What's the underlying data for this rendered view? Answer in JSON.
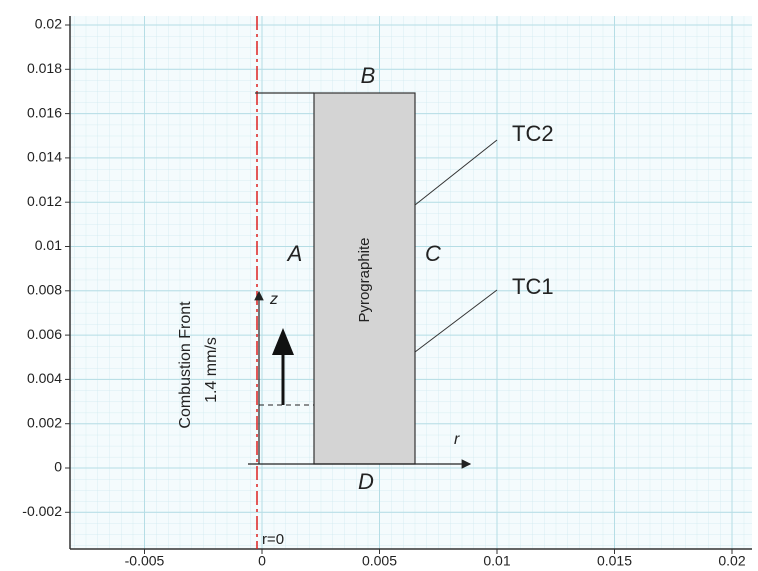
{
  "axes": {
    "xticks": [
      -0.005,
      0,
      0.005,
      0.01,
      0.015,
      0.02
    ],
    "yticks": [
      -0.002,
      0,
      0.002,
      0.004,
      0.006,
      0.008,
      0.01,
      0.012,
      0.014,
      0.016,
      0.018,
      0.02
    ]
  },
  "labels": {
    "top": "B",
    "left": "A",
    "right": "C",
    "bottom": "D",
    "material": "Pyrographite",
    "tc2": "TC2",
    "tc1": "TC1",
    "front": "Combustion Front",
    "speed": "1.4 mm/s",
    "z_axis": "z",
    "r_axis": "r",
    "axis_origin": "r=0"
  }
}
